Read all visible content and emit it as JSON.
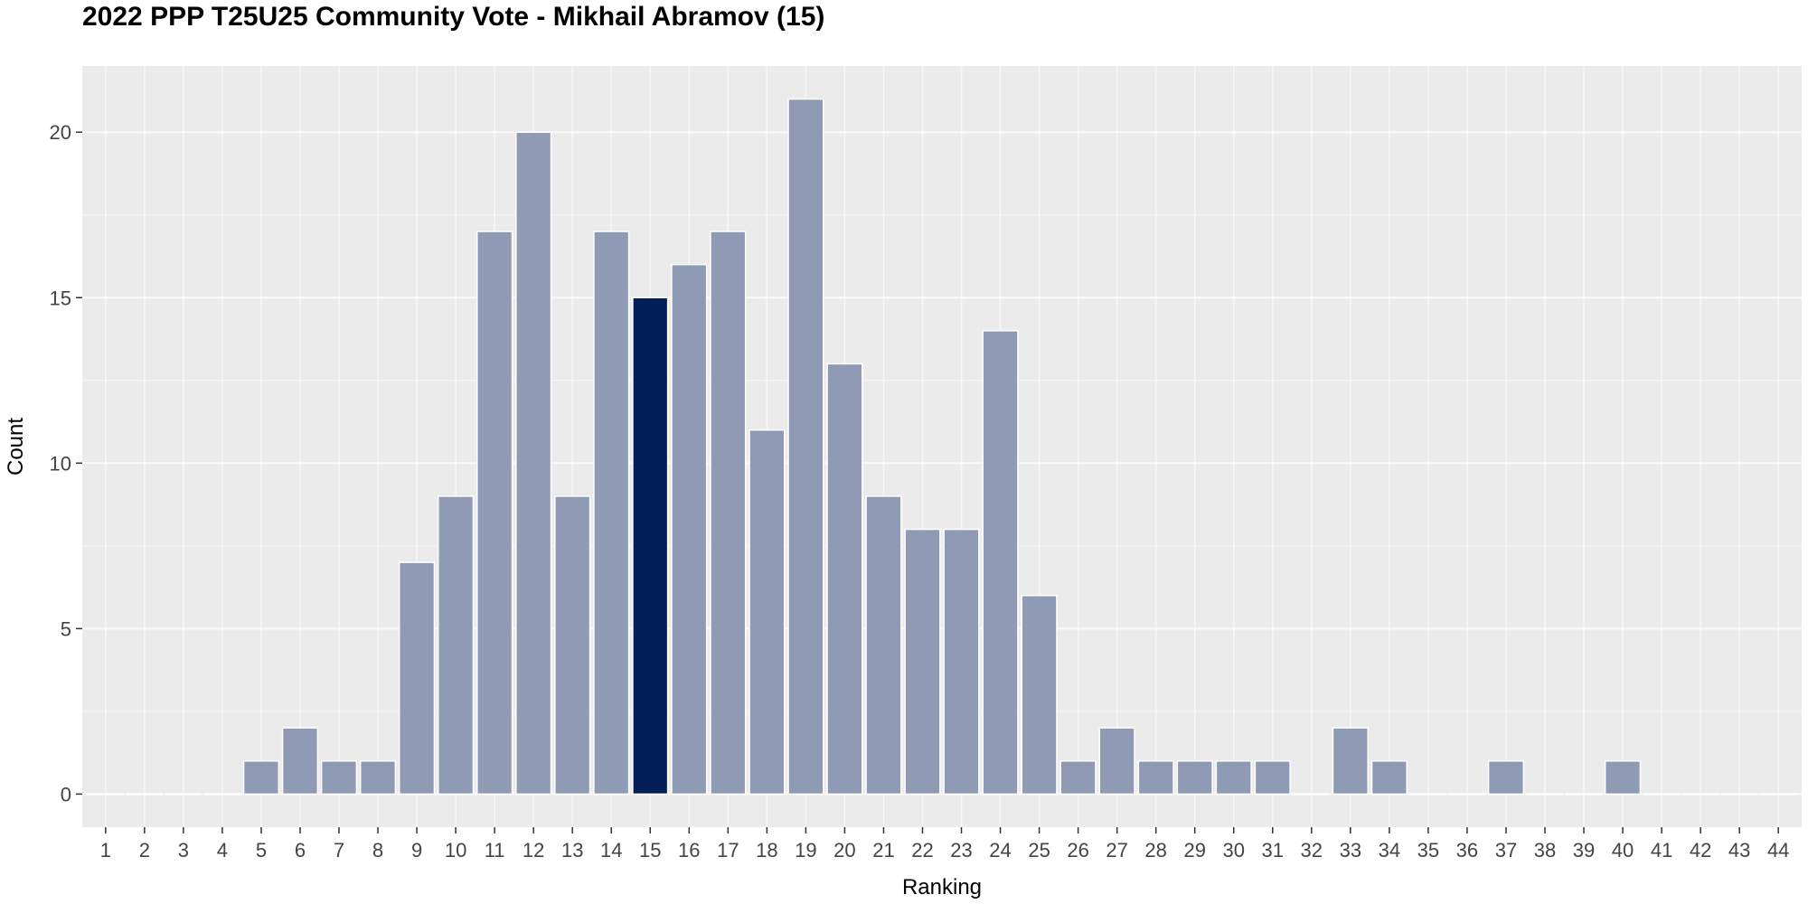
{
  "chart_data": {
    "type": "bar",
    "title": "2022 PPP T25U25 Community Vote - Mikhail Abramov (15)",
    "xlabel": "Ranking",
    "ylabel": "Count",
    "ylim": [
      -1,
      22
    ],
    "yticks": [
      0,
      5,
      10,
      15,
      20
    ],
    "grid": true,
    "categories": [
      "1",
      "2",
      "3",
      "4",
      "5",
      "6",
      "7",
      "8",
      "9",
      "10",
      "11",
      "12",
      "13",
      "14",
      "15",
      "16",
      "17",
      "18",
      "19",
      "20",
      "21",
      "22",
      "23",
      "24",
      "25",
      "26",
      "27",
      "28",
      "29",
      "30",
      "31",
      "32",
      "33",
      "34",
      "35",
      "36",
      "37",
      "38",
      "39",
      "40",
      "41",
      "42",
      "43",
      "44"
    ],
    "values": [
      0,
      0,
      0,
      0,
      1,
      2,
      1,
      1,
      7,
      9,
      17,
      20,
      9,
      17,
      15,
      16,
      17,
      11,
      21,
      13,
      9,
      8,
      8,
      14,
      6,
      1,
      2,
      1,
      1,
      1,
      1,
      0,
      2,
      1,
      0,
      0,
      1,
      0,
      0,
      1,
      0,
      0,
      0,
      0
    ],
    "highlight_category": "15",
    "colors": {
      "bar": "#8f9ab4",
      "highlight": "#041e57",
      "panel": "#ebebeb",
      "grid": "#ffffff",
      "bar_outline": "#ffffff"
    }
  }
}
